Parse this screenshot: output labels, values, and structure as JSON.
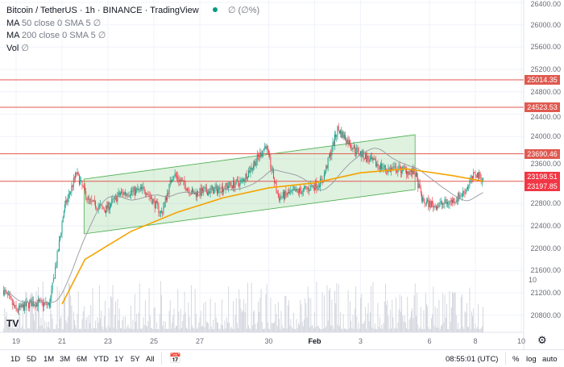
{
  "legend": {
    "symbol": "Bitcoin / TetherUS",
    "interval": "1h",
    "exchange": "BINANCE",
    "source": "TradingView",
    "change": "∅ (∅%)",
    "ma50": {
      "name": "MA",
      "params": "50 close 0 SMA 5",
      "value": "∅"
    },
    "ma200": {
      "name": "MA",
      "params": "200 close 0 SMA 5",
      "value": "∅"
    },
    "vol": {
      "name": "Vol",
      "value": "∅"
    }
  },
  "price_axis": [
    "26400.00",
    "26000.00",
    "25600.00",
    "25200.00",
    "24800.00",
    "24400.00",
    "24000.00",
    "23600.00",
    "22800.00",
    "22400.00",
    "22000.00",
    "21600.00",
    "21200.00",
    "20800.00"
  ],
  "time_axis": [
    {
      "label": "19",
      "date": "01-19 00:00"
    },
    {
      "label": "21",
      "date": "01-21 00:00"
    },
    {
      "label": "23",
      "date": "01-23 00:00"
    },
    {
      "label": "25",
      "date": "01-25 00:00"
    },
    {
      "label": "27",
      "date": "01-27 00:00"
    },
    {
      "label": "30",
      "date": "01-30 00:00"
    },
    {
      "label": "Feb",
      "date": "02-01 00:00",
      "bold": true
    },
    {
      "label": "3",
      "date": "02-03 00:00"
    },
    {
      "label": "6",
      "date": "02-06 00:00"
    },
    {
      "label": "8",
      "date": "02-08 00:00"
    },
    {
      "label": "10",
      "date": "02-10 00:00"
    }
  ],
  "toolbar": {
    "ranges": [
      "1D",
      "5D",
      "1M",
      "3M",
      "6M",
      "YTD",
      "1Y",
      "5Y",
      "All"
    ],
    "time": "08:55:01 (UTC)",
    "percent": "%",
    "log": "log",
    "auto": "auto"
  },
  "colors": {
    "up": "#089981",
    "down": "#f23645",
    "ma200": "#f5a300",
    "ma50": "#9598a1",
    "hline": "#e0594f",
    "channel": "#4caf50",
    "volume": "#d1d4dc"
  },
  "chart_data": {
    "type": "candlestick",
    "ylim": [
      20600,
      26400
    ],
    "xlim": [
      "01-18 07:00",
      "02-10 18:00"
    ],
    "grid": true,
    "price_path": [
      [
        "01-18 11:00",
        21245
      ],
      [
        "01-19 00:00",
        20884
      ],
      [
        "01-19 17:00",
        21028
      ],
      [
        "01-20 11:00",
        20985
      ],
      [
        "01-20 20:00",
        21967
      ],
      [
        "01-21 02:00",
        22689
      ],
      [
        "01-21 15:00",
        23339
      ],
      [
        "01-22 04:00",
        22833
      ],
      [
        "01-22 21:00",
        22689
      ],
      [
        "01-23 13:00",
        22978
      ],
      [
        "01-24 15:00",
        23050
      ],
      [
        "01-25 08:00",
        22617
      ],
      [
        "01-25 20:00",
        23339
      ],
      [
        "01-26 17:00",
        22978
      ],
      [
        "01-27 18:00",
        23050
      ],
      [
        "01-28 20:00",
        23194
      ],
      [
        "01-29 13:00",
        23627
      ],
      [
        "01-29 21:00",
        23844
      ],
      [
        "01-30 10:00",
        22906
      ],
      [
        "01-30 22:00",
        22978
      ],
      [
        "01-31 15:00",
        23050
      ],
      [
        "02-01 08:00",
        23194
      ],
      [
        "02-02 00:00",
        24133
      ],
      [
        "02-02 18:00",
        23772
      ],
      [
        "02-03 11:00",
        23555
      ],
      [
        "02-04 03:00",
        23411
      ],
      [
        "02-04 20:00",
        23411
      ],
      [
        "02-05 09:00",
        23339
      ],
      [
        "02-05 17:00",
        22833
      ],
      [
        "02-06 06:00",
        22761
      ],
      [
        "02-06 23:00",
        22833
      ],
      [
        "02-07 11:00",
        22978
      ],
      [
        "02-08 00:00",
        23339
      ],
      [
        "02-08 08:00",
        23237
      ]
    ],
    "ma200_path": [
      [
        "01-21 00:00",
        21000
      ],
      [
        "01-22 00:00",
        21800
      ],
      [
        "01-24 00:00",
        22300
      ],
      [
        "01-26 00:00",
        22640
      ],
      [
        "01-28 00:00",
        22900
      ],
      [
        "01-30 00:00",
        23080
      ],
      [
        "02-01 00:00",
        23170
      ],
      [
        "02-03 00:00",
        23350
      ],
      [
        "02-05 00:00",
        23420
      ],
      [
        "02-07 00:00",
        23300
      ],
      [
        "02-08 08:00",
        23200
      ]
    ],
    "channel": {
      "start": "01-21 23:00",
      "end": "02-05 09:00",
      "upper": [
        23238,
        24032
      ],
      "lower": [
        22256,
        23050
      ]
    },
    "horizontal_levels": [
      25014.35,
      24523.53,
      23690.46,
      23198.51
    ],
    "tags": [
      {
        "label": "25014.35",
        "price": 25014.35
      },
      {
        "label": "24523.53",
        "price": 24523.53
      },
      {
        "label": "23690.46",
        "price": 23690.46
      },
      {
        "label": "23198.51",
        "price": 23198.51
      },
      {
        "label": "23197.85",
        "price": 23197.85
      }
    ],
    "volume_scale_label": "10"
  }
}
